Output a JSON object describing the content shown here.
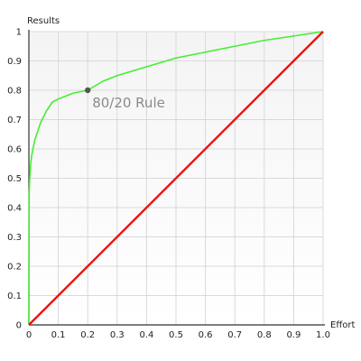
{
  "chart_data": {
    "type": "line",
    "xlabel": "Effort",
    "ylabel": "Results",
    "xlim": [
      0,
      1
    ],
    "ylim": [
      0,
      1
    ],
    "x_ticks": [
      0,
      0.1,
      0.2,
      0.3,
      0.4,
      0.5,
      0.6,
      0.7,
      0.8,
      0.9,
      1.0
    ],
    "x_tick_labels": [
      "0",
      "0.1",
      "0.2",
      "0.3",
      "0.4",
      "0.5",
      "0.6",
      "0.7",
      "0.8",
      "0.9",
      "1.0"
    ],
    "y_ticks": [
      0,
      0.1,
      0.2,
      0.3,
      0.4,
      0.5,
      0.6,
      0.7,
      0.8,
      0.9,
      1
    ],
    "y_tick_labels": [
      "0",
      "0.1",
      "0.2",
      "0.3",
      "0.4",
      "0.5",
      "0.6",
      "0.7",
      "0.8",
      "0.9",
      "1"
    ],
    "grid": true,
    "series": [
      {
        "color": "#44ee33",
        "x": [
          0,
          0.001,
          0.003,
          0.006,
          0.01,
          0.02,
          0.04,
          0.06,
          0.08,
          0.1,
          0.15,
          0.2,
          0.25,
          0.3,
          0.4,
          0.5,
          0.6,
          0.7,
          0.8,
          0.9,
          1.0
        ],
        "y": [
          0,
          0.45,
          0.5,
          0.55,
          0.58,
          0.63,
          0.69,
          0.73,
          0.76,
          0.77,
          0.79,
          0.8,
          0.83,
          0.85,
          0.88,
          0.91,
          0.93,
          0.95,
          0.97,
          0.985,
          1.0
        ]
      },
      {
        "color": "#ee1111",
        "x": [
          0,
          1
        ],
        "y": [
          0,
          1
        ]
      }
    ],
    "annotation": {
      "text": "80/20 Rule",
      "x": 0.2,
      "y": 0.8,
      "point_color": "#555555",
      "text_color": "#8a8a8a"
    }
  }
}
